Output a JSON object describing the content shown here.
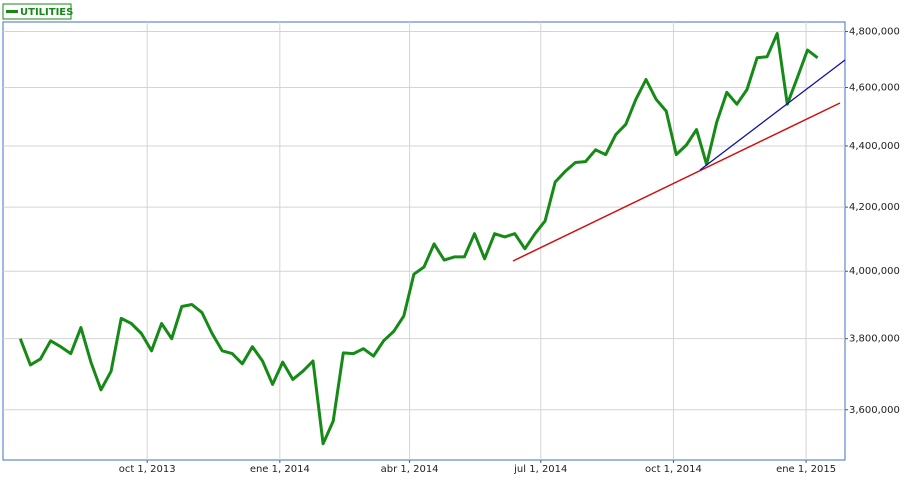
{
  "chart_data": {
    "type": "line",
    "log_scale": true,
    "grid": true,
    "legend": "top-left",
    "xlim": [
      "2013-06-23",
      "2015-01-28"
    ],
    "xticks": [
      {
        "value": "2013-10-01",
        "label": "oct 1, 2013"
      },
      {
        "value": "2014-01-01",
        "label": "ene 1, 2014"
      },
      {
        "value": "2014-04-01",
        "label": "abr 1, 2014"
      },
      {
        "value": "2014-07-01",
        "label": "jul 1, 2014"
      },
      {
        "value": "2014-10-01",
        "label": "oct 1, 2014"
      },
      {
        "value": "2015-01-01",
        "label": "ene 1, 2015"
      }
    ],
    "ylim": [
      3465000,
      4835000
    ],
    "yticks": [
      {
        "value": 3600000,
        "label": "3,600,000"
      },
      {
        "value": 3800000,
        "label": "3,800,000"
      },
      {
        "value": 4000000,
        "label": "4,000,000"
      },
      {
        "value": 4200000,
        "label": "4,200,000"
      },
      {
        "value": 4400000,
        "label": "4,400,000"
      },
      {
        "value": 4600000,
        "label": "4,600,000"
      },
      {
        "value": 4800000,
        "label": "4,800,000"
      }
    ],
    "x": [
      "2013-07-05",
      "2013-07-12",
      "2013-07-19",
      "2013-07-26",
      "2013-08-02",
      "2013-08-09",
      "2013-08-16",
      "2013-08-23",
      "2013-08-30",
      "2013-09-06",
      "2013-09-13",
      "2013-09-20",
      "2013-09-27",
      "2013-10-04",
      "2013-10-11",
      "2013-10-18",
      "2013-10-25",
      "2013-11-01",
      "2013-11-08",
      "2013-11-15",
      "2013-11-22",
      "2013-11-29",
      "2013-12-06",
      "2013-12-13",
      "2013-12-20",
      "2013-12-27",
      "2014-01-03",
      "2014-01-10",
      "2014-01-17",
      "2014-01-24",
      "2014-01-31",
      "2014-02-07",
      "2014-02-14",
      "2014-02-21",
      "2014-02-28",
      "2014-03-07",
      "2014-03-14",
      "2014-03-21",
      "2014-03-28",
      "2014-04-04",
      "2014-04-11",
      "2014-04-18",
      "2014-04-25",
      "2014-05-02",
      "2014-05-09",
      "2014-05-16",
      "2014-05-23",
      "2014-05-30",
      "2014-06-06",
      "2014-06-13",
      "2014-06-20",
      "2014-06-27",
      "2014-07-04",
      "2014-07-11",
      "2014-07-18",
      "2014-07-25",
      "2014-08-01",
      "2014-08-08",
      "2014-08-15",
      "2014-08-22",
      "2014-08-29",
      "2014-09-05",
      "2014-09-12",
      "2014-09-19",
      "2014-09-26",
      "2014-10-03",
      "2014-10-10",
      "2014-10-17",
      "2014-10-24",
      "2014-10-31",
      "2014-11-07",
      "2014-11-14",
      "2014-11-21",
      "2014-11-28",
      "2014-12-05",
      "2014-12-12",
      "2014-12-19",
      "2014-12-26",
      "2015-01-02",
      "2015-01-09"
    ],
    "series": [
      {
        "name": "UTILITIES",
        "color": "#168a16",
        "values": [
          3800000,
          3725000,
          3742000,
          3794000,
          3777000,
          3757000,
          3832000,
          3733000,
          3655000,
          3707000,
          3859000,
          3844000,
          3815000,
          3765000,
          3844000,
          3800000,
          3894000,
          3900000,
          3876000,
          3815000,
          3765000,
          3757000,
          3728000,
          3777000,
          3736000,
          3670000,
          3733000,
          3684000,
          3707000,
          3736000,
          3508000,
          3569000,
          3759000,
          3757000,
          3771000,
          3750000,
          3794000,
          3821000,
          3866000,
          3991000,
          4013000,
          4084000,
          4034000,
          4044000,
          4044000,
          4116000,
          4038000,
          4116000,
          4106000,
          4116000,
          4069000,
          4116000,
          4156000,
          4281000,
          4316000,
          4345000,
          4348000,
          4387000,
          4371000,
          4438000,
          4473000,
          4559000,
          4628000,
          4559000,
          4518000,
          4371000,
          4403000,
          4455000,
          4339000,
          4480000,
          4583000,
          4542000,
          4593000,
          4705000,
          4709000,
          4793000,
          4542000,
          4635000,
          4733000,
          4705000
        ]
      }
    ]
  }
}
